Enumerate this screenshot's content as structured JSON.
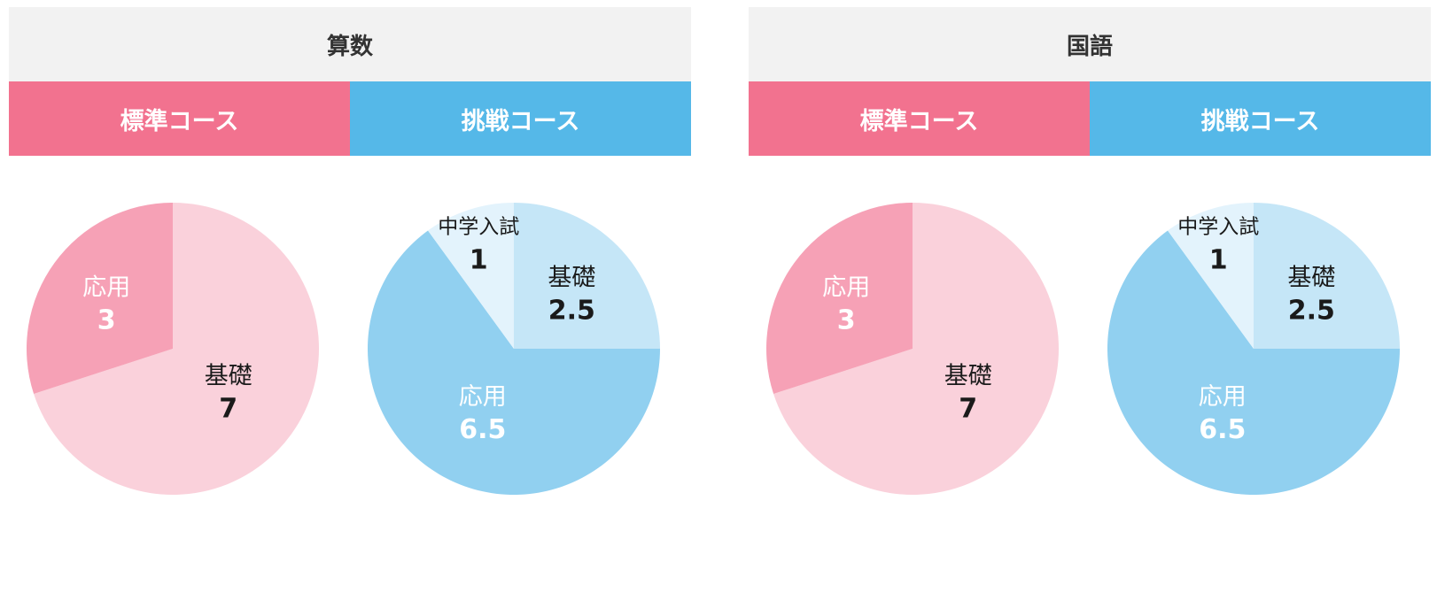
{
  "panels": [
    {
      "subject": "算数",
      "tabs": [
        {
          "label": "標準コース",
          "color": "#f2728f"
        },
        {
          "label": "挑戦コース",
          "color": "#55b8e8"
        }
      ]
    },
    {
      "subject": "国語",
      "tabs": [
        {
          "label": "標準コース",
          "color": "#f2728f"
        },
        {
          "label": "挑戦コース",
          "color": "#55b8e8"
        }
      ]
    }
  ],
  "chart_data": [
    {
      "type": "pie",
      "title": "算数 標準コース",
      "slices": [
        {
          "label": "基礎",
          "value": 7,
          "color": "#fad1db",
          "text_color": "#1a1a1a"
        },
        {
          "label": "応用",
          "value": 3,
          "color": "#f6a1b6",
          "text_color": "#ffffff"
        }
      ]
    },
    {
      "type": "pie",
      "title": "算数 挑戦コース",
      "slices": [
        {
          "label": "基礎",
          "value": 2.5,
          "color": "#c5e6f7",
          "text_color": "#1a1a1a"
        },
        {
          "label": "応用",
          "value": 6.5,
          "color": "#91d0f0",
          "text_color": "#ffffff"
        },
        {
          "label": "中学入試",
          "value": 1,
          "color": "#e3f3fc",
          "text_color": "#1a1a1a"
        }
      ]
    },
    {
      "type": "pie",
      "title": "国語 標準コース",
      "slices": [
        {
          "label": "基礎",
          "value": 7,
          "color": "#fad1db",
          "text_color": "#1a1a1a"
        },
        {
          "label": "応用",
          "value": 3,
          "color": "#f6a1b6",
          "text_color": "#ffffff"
        }
      ]
    },
    {
      "type": "pie",
      "title": "国語 挑戦コース",
      "slices": [
        {
          "label": "基礎",
          "value": 2.5,
          "color": "#c5e6f7",
          "text_color": "#1a1a1a"
        },
        {
          "label": "応用",
          "value": 6.5,
          "color": "#91d0f0",
          "text_color": "#ffffff"
        },
        {
          "label": "中学入試",
          "value": 1,
          "color": "#e3f3fc",
          "text_color": "#1a1a1a"
        }
      ]
    }
  ]
}
